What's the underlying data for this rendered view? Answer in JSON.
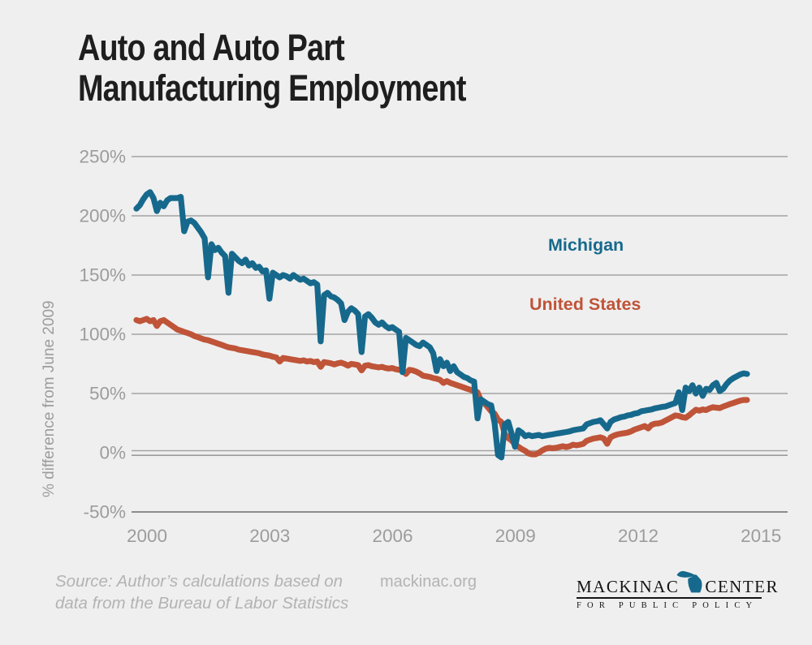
{
  "title": {
    "line1": "Auto and Auto Part",
    "line2": "Manufacturing Employment"
  },
  "chart_data": {
    "type": "line",
    "title": "Auto and Auto Part Manufacturing Employment",
    "xlabel": "",
    "ylabel": "% difference from June 2009",
    "baseline_note": "June 2009 = 0%",
    "frequency": "monthly",
    "x_start": "2000-01",
    "x_end": "2014-12",
    "x_tick_years": [
      2000,
      2003,
      2006,
      2009,
      2012,
      2015
    ],
    "x_tick_labels": [
      "2000",
      "2003",
      "2006",
      "2009",
      "2012",
      "2015"
    ],
    "y_ticks": [
      250,
      200,
      150,
      100,
      50,
      0,
      -50
    ],
    "y_tick_labels": [
      "250%",
      "200%",
      "150%",
      "100%",
      "50%",
      "0%",
      "-50%"
    ],
    "ylim": [
      -50,
      250
    ],
    "grid": true,
    "legend_position": "inline-right",
    "series": [
      {
        "name": "Michigan",
        "color": "#16698c",
        "values": [
          206,
          209,
          214,
          218,
          220,
          215,
          204,
          211,
          208,
          213,
          215,
          215,
          215,
          216,
          187,
          195,
          196,
          194,
          190,
          186,
          181,
          148,
          176,
          171,
          173,
          169,
          166,
          135,
          168,
          165,
          162,
          160,
          163,
          158,
          160,
          156,
          157,
          153,
          154,
          130,
          152,
          150,
          148,
          150,
          149,
          147,
          150,
          148,
          146,
          147,
          145,
          143,
          144,
          142,
          94,
          133,
          135,
          132,
          131,
          129,
          126,
          112,
          119,
          122,
          120,
          117,
          85,
          115,
          117,
          114,
          110,
          108,
          110,
          107,
          105,
          106,
          104,
          102,
          68,
          97,
          95,
          93,
          91,
          90,
          93,
          91,
          89,
          84,
          69,
          79,
          73,
          76,
          69,
          73,
          68,
          66,
          64,
          63,
          61,
          60,
          29,
          45,
          43,
          41,
          40,
          25,
          -2,
          -4,
          24,
          26,
          16,
          5,
          19,
          17,
          14,
          15,
          14,
          14.5,
          15,
          14,
          14.5,
          15,
          15.5,
          16,
          16.5,
          17,
          17.5,
          18,
          19,
          19.5,
          20,
          20.5,
          24,
          25,
          26,
          26.5,
          27.4,
          24,
          20.5,
          26,
          28,
          29,
          30,
          30.5,
          31.5,
          32,
          33,
          33.5,
          35,
          35.5,
          36,
          36.5,
          37.5,
          38,
          38.6,
          39,
          40,
          41,
          42,
          51,
          36,
          55,
          52,
          57,
          50,
          55,
          48,
          54,
          53,
          57,
          59,
          52,
          54,
          58,
          61,
          63,
          64.5,
          66,
          67,
          66.5
        ]
      },
      {
        "name": "United States",
        "color": "#bf5438",
        "values": [
          112,
          111,
          112,
          113,
          111,
          112,
          107,
          111,
          112,
          110,
          108,
          106,
          104,
          103,
          102,
          101,
          100,
          98.5,
          97.5,
          96.5,
          95.5,
          95,
          94,
          93,
          92,
          91,
          90,
          89,
          88.5,
          88,
          87,
          86.5,
          86,
          85.5,
          85,
          84.5,
          84,
          83,
          82.5,
          82,
          81,
          80.5,
          77,
          80,
          79.5,
          79,
          78.5,
          78,
          77.5,
          78,
          77,
          77.5,
          76.5,
          77,
          72.5,
          76.5,
          76,
          75.5,
          74.5,
          75.5,
          76,
          75,
          73.5,
          75,
          74.5,
          74,
          69.5,
          73.5,
          74,
          73,
          72.5,
          72,
          72.5,
          71.5,
          71,
          71.5,
          70.5,
          70,
          69.5,
          66.5,
          70,
          69.5,
          68.5,
          67,
          65,
          64.5,
          64,
          63,
          62.5,
          61.5,
          59,
          60.5,
          59,
          58,
          57,
          56,
          55,
          54,
          53,
          52,
          51,
          44,
          41.8,
          38.4,
          35,
          33,
          28,
          25.8,
          15.8,
          12.3,
          10.3,
          7,
          5,
          3,
          1.5,
          -0.7,
          -1.4,
          -1.4,
          0,
          2,
          3.4,
          4.1,
          3.8,
          4.1,
          4.8,
          5.5,
          4.8,
          5.5,
          6.8,
          6.2,
          6.8,
          7.5,
          10,
          11,
          12,
          12.5,
          13,
          12,
          7.5,
          13,
          14.5,
          15.5,
          16,
          16.5,
          17,
          18,
          19.5,
          20.5,
          21.5,
          22.5,
          20.5,
          23.5,
          24.5,
          24.7,
          25.5,
          27,
          28.5,
          30,
          31.5,
          31,
          30,
          29.5,
          31.5,
          34,
          36.3,
          35.5,
          36.5,
          36,
          37.5,
          38.4,
          38,
          37.7,
          39,
          40,
          41.1,
          42,
          43,
          44,
          44.5,
          44.5
        ]
      }
    ]
  },
  "footer": {
    "source_line1": "Source: Author’s calculations based on",
    "source_line2": "data from the Bureau of Labor Statistics",
    "website": "mackinac.org"
  },
  "logo": {
    "name_left": "MACKINAC",
    "name_right": "CENTER",
    "tagline": "FOR PUBLIC POLICY",
    "icon": "michigan-state-icon",
    "icon_color": "#16698c"
  },
  "colors": {
    "background": "#efefef",
    "grid": "#a4a4a4",
    "axis_emphasis": "#8c8c8c",
    "axis_text": "#9c9c9c",
    "title_text": "#1e1e1e",
    "michigan": "#16698c",
    "united_states": "#bf5438",
    "source_text": "#b3b3b3",
    "logo_text": "#141414"
  }
}
